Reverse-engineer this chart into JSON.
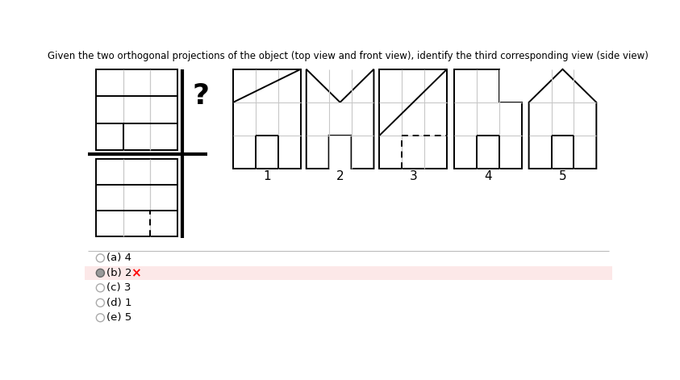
{
  "title": "Given the two orthogonal projections of the object (top view and front view), identify the third corresponding view (side view)",
  "bg_color": "#ffffff",
  "line_color": "#000000",
  "grid_color": "#c8c8c8",
  "answer_bg": "#fce8e8",
  "options": [
    {
      "label": "(a) 4",
      "selected": false,
      "wrong": false
    },
    {
      "label": "(b) 2",
      "selected": true,
      "wrong": true
    },
    {
      "label": "(c) 3",
      "selected": false,
      "wrong": false
    },
    {
      "label": "(d) 1",
      "selected": false,
      "wrong": false
    },
    {
      "label": "(e) 5",
      "selected": false,
      "wrong": false
    }
  ],
  "shape_labels": [
    "1",
    "2",
    "3",
    "4",
    "5"
  ]
}
